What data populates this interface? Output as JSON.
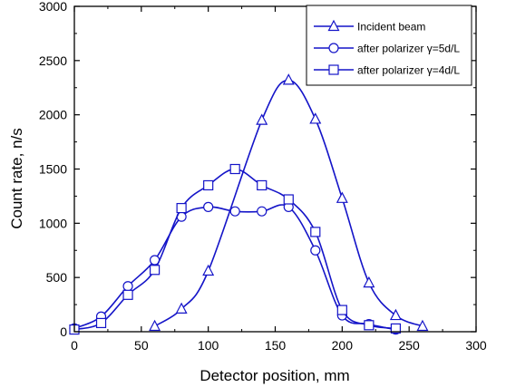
{
  "chart_data": {
    "type": "line",
    "title": "",
    "xlabel": "Detector position,  mm",
    "ylabel": "Count rate, n/s",
    "xlim": [
      0,
      300
    ],
    "ylim": [
      0,
      3000
    ],
    "x_ticks": [
      "0",
      "50",
      "100",
      "150",
      "200",
      "250",
      "300"
    ],
    "y_ticks": [
      "0",
      "500",
      "1000",
      "1500",
      "2000",
      "2500",
      "3000"
    ],
    "grid": false,
    "legend_position": "top-right",
    "line_color": "#1414c8",
    "series": [
      {
        "name": "Incident beam",
        "marker": "triangle",
        "x": [
          60,
          80,
          100,
          140,
          160,
          180,
          200,
          220,
          240,
          260
        ],
        "y": [
          50,
          210,
          560,
          1950,
          2320,
          1960,
          1230,
          450,
          150,
          50
        ]
      },
      {
        "name": "after polarizer γ=5d/L",
        "marker": "circle",
        "x": [
          0,
          20,
          40,
          60,
          80,
          100,
          120,
          140,
          160,
          180,
          200,
          220,
          240
        ],
        "y": [
          30,
          140,
          420,
          660,
          1060,
          1150,
          1110,
          1110,
          1150,
          750,
          150,
          70,
          20
        ]
      },
      {
        "name": "after polarizer γ=4d/L",
        "marker": "square",
        "x": [
          0,
          20,
          40,
          60,
          80,
          100,
          120,
          140,
          160,
          180,
          200,
          220,
          240
        ],
        "y": [
          20,
          80,
          340,
          570,
          1140,
          1350,
          1500,
          1350,
          1220,
          920,
          200,
          60,
          30
        ]
      }
    ]
  }
}
